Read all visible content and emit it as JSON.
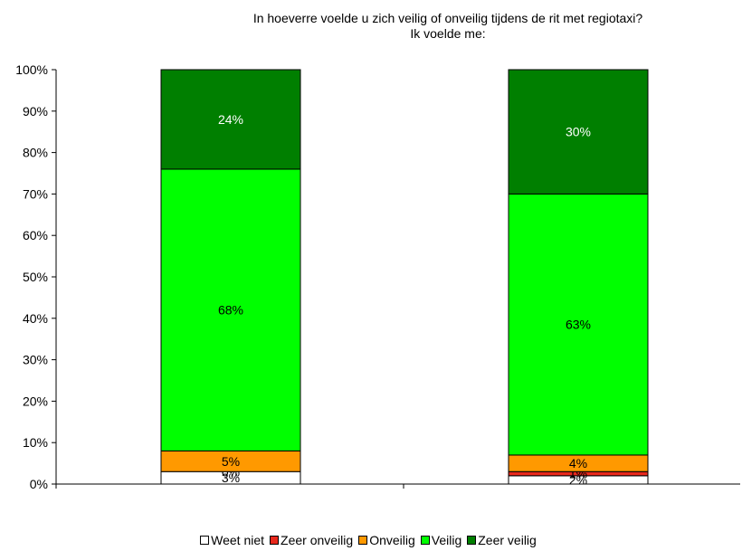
{
  "chart_data": {
    "type": "bar",
    "stacked": true,
    "percent_axis": true,
    "title": "In hoeverre voelde u zich veilig of onveilig tijdens de rit met regiotaxi?",
    "subtitle": "Ik voelde me:",
    "xlabel": "",
    "ylabel": "",
    "categories": [
      "",
      ""
    ],
    "ylim": [
      0,
      100
    ],
    "yticks": [
      "0%",
      "10%",
      "20%",
      "30%",
      "40%",
      "50%",
      "60%",
      "70%",
      "80%",
      "90%",
      "100%"
    ],
    "grid": false,
    "legend_position": "bottom",
    "series": [
      {
        "name": "Weet niet",
        "color": "#ffffff",
        "values": [
          3,
          2
        ],
        "labels": [
          "3%",
          "2%"
        ],
        "label_color": "#000000"
      },
      {
        "name": "Zeer onveilig",
        "color": "#e8281c",
        "values": [
          0,
          1
        ],
        "labels": [
          "0%",
          "1%"
        ],
        "label_color": "#000000"
      },
      {
        "name": "Onveilig",
        "color": "#ff9900",
        "values": [
          5,
          4
        ],
        "labels": [
          "5%",
          "4%"
        ],
        "label_color": "#000000"
      },
      {
        "name": "Veilig",
        "color": "#00ff00",
        "values": [
          68,
          63
        ],
        "labels": [
          "68%",
          "63%"
        ],
        "label_color": "#000000"
      },
      {
        "name": "Zeer veilig",
        "color": "#007f00",
        "values": [
          24,
          30
        ],
        "labels": [
          "24%",
          "30%"
        ],
        "label_color": "#ffffff"
      }
    ]
  }
}
